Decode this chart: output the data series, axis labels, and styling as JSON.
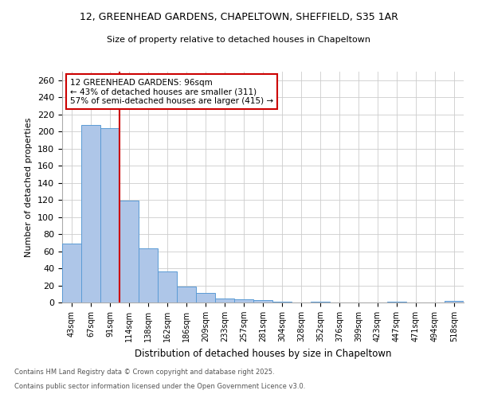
{
  "title_line1": "12, GREENHEAD GARDENS, CHAPELTOWN, SHEFFIELD, S35 1AR",
  "title_line2": "Size of property relative to detached houses in Chapeltown",
  "xlabel": "Distribution of detached houses by size in Chapeltown",
  "ylabel": "Number of detached properties",
  "categories": [
    "43sqm",
    "67sqm",
    "91sqm",
    "114sqm",
    "138sqm",
    "162sqm",
    "186sqm",
    "209sqm",
    "233sqm",
    "257sqm",
    "281sqm",
    "304sqm",
    "328sqm",
    "352sqm",
    "376sqm",
    "399sqm",
    "423sqm",
    "447sqm",
    "471sqm",
    "494sqm",
    "518sqm"
  ],
  "values": [
    69,
    208,
    204,
    119,
    63,
    36,
    19,
    11,
    5,
    4,
    3,
    1,
    0,
    1,
    0,
    0,
    0,
    1,
    0,
    0,
    2
  ],
  "bar_color": "#aec6e8",
  "bar_edgecolor": "#5b9bd5",
  "vline_color": "#cc0000",
  "annotation_title": "12 GREENHEAD GARDENS: 96sqm",
  "annotation_line2": "← 43% of detached houses are smaller (311)",
  "annotation_line3": "57% of semi-detached houses are larger (415) →",
  "annotation_box_edgecolor": "#cc0000",
  "ylim": [
    0,
    270
  ],
  "yticks": [
    0,
    20,
    40,
    60,
    80,
    100,
    120,
    140,
    160,
    180,
    200,
    220,
    240,
    260
  ],
  "footnote1": "Contains HM Land Registry data © Crown copyright and database right 2025.",
  "footnote2": "Contains public sector information licensed under the Open Government Licence v3.0.",
  "fig_width": 6.0,
  "fig_height": 5.0,
  "background_color": "#ffffff"
}
